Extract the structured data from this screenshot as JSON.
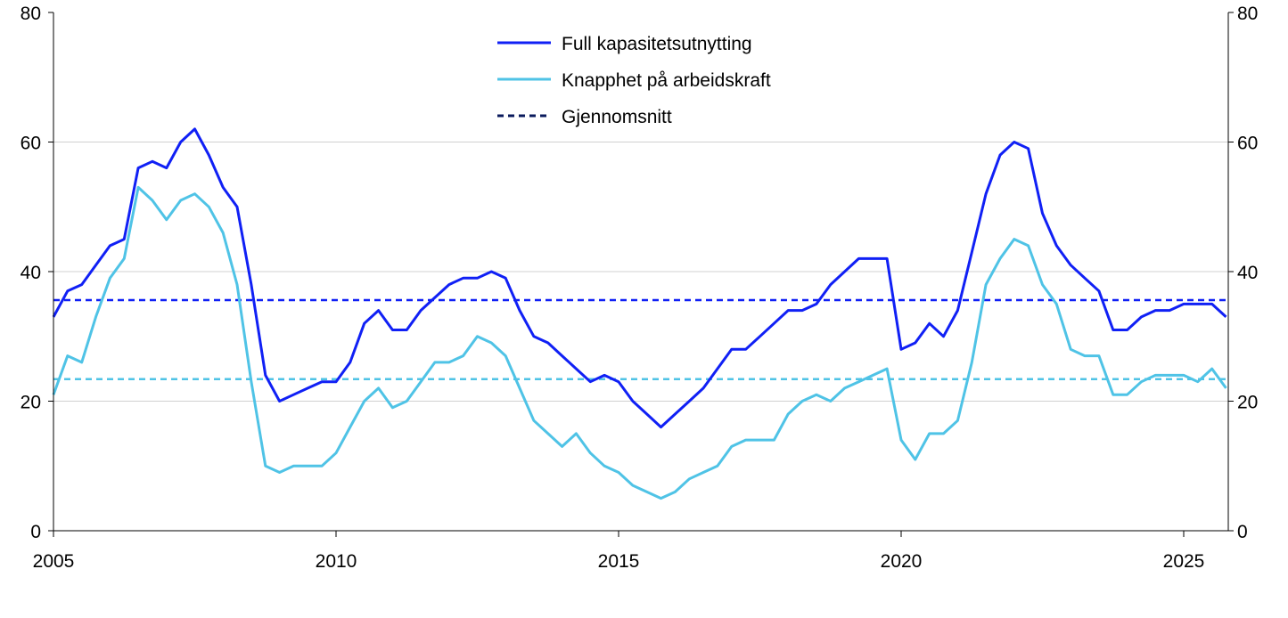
{
  "chart_data": {
    "type": "line",
    "title": "",
    "xlabel": "",
    "ylabel": "",
    "xlim": [
      2005,
      2025.9
    ],
    "ylim": [
      0,
      80
    ],
    "grid": true,
    "legend_position": "top-center",
    "x_ticks": [
      "2005",
      "2010",
      "2015",
      "2020",
      "2025"
    ],
    "x_tick_values": [
      2005,
      2010,
      2015,
      2020,
      2025
    ],
    "y_ticks": [
      "0",
      "20",
      "40",
      "60",
      "80"
    ],
    "y_tick_values": [
      0,
      20,
      40,
      60,
      80
    ],
    "x_start": 2005,
    "x_step": 0.25,
    "series": [
      {
        "name": "Full kapasitetsutnytting",
        "color": "#1020f5",
        "style": "solid",
        "values": [
          33,
          37,
          38,
          41,
          44,
          45,
          56,
          57,
          56,
          60,
          62,
          58,
          53,
          50,
          38,
          24,
          20,
          21,
          22,
          23,
          23,
          26,
          32,
          34,
          31,
          31,
          34,
          36,
          38,
          39,
          39,
          40,
          39,
          34,
          30,
          29,
          27,
          25,
          23,
          24,
          23,
          20,
          18,
          16,
          18,
          20,
          22,
          25,
          28,
          28,
          30,
          32,
          34,
          34,
          35,
          38,
          40,
          42,
          42,
          42,
          28,
          29,
          32,
          30,
          34,
          43,
          52,
          58,
          60,
          59,
          49,
          44,
          41,
          39,
          37,
          31,
          31,
          33,
          34,
          34,
          35,
          35,
          35,
          33
        ]
      },
      {
        "name": "Knapphet på arbeidskraft",
        "color": "#4fc3e6",
        "style": "solid",
        "values": [
          21,
          27,
          26,
          33,
          39,
          42,
          53,
          51,
          48,
          51,
          52,
          50,
          46,
          38,
          23,
          10,
          9,
          10,
          10,
          10,
          12,
          16,
          20,
          22,
          19,
          20,
          23,
          26,
          26,
          27,
          30,
          29,
          27,
          22,
          17,
          15,
          13,
          15,
          12,
          10,
          9,
          7,
          6,
          5,
          6,
          8,
          9,
          10,
          13,
          14,
          14,
          14,
          18,
          20,
          21,
          20,
          22,
          23,
          24,
          25,
          14,
          11,
          15,
          15,
          17,
          26,
          38,
          42,
          45,
          44,
          38,
          35,
          28,
          27,
          27,
          21,
          21,
          23,
          24,
          24,
          24,
          23,
          25,
          22
        ]
      }
    ],
    "averages": [
      {
        "series": "Full kapasitetsutnytting",
        "value": 35.6,
        "color": "#1020f5"
      },
      {
        "series": "Knapphet på arbeidskraft",
        "value": 23.4,
        "color": "#4fc3e6"
      }
    ],
    "legend": [
      {
        "label": "Full kapasitetsutnytting",
        "color": "#1020f5",
        "style": "solid"
      },
      {
        "label": "Knapphet på arbeidskraft",
        "color": "#4fc3e6",
        "style": "solid"
      },
      {
        "label": "Gjennomsnitt",
        "color": "#0a1a5c",
        "style": "dashed"
      }
    ]
  }
}
